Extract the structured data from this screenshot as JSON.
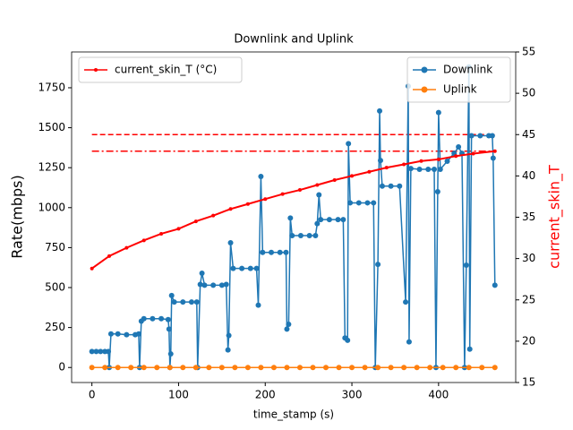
{
  "chart_data": {
    "type": "line",
    "title": "Downlink and Uplink",
    "x_label": "time_stamp (s)",
    "y_label": "Rate(mbps)",
    "y2_label": "current_skin_T",
    "xlim": [
      -23.4,
      489
    ],
    "xticks": [
      0,
      100,
      200,
      300,
      400
    ],
    "ylim": [
      -94,
      1974
    ],
    "yticks": [
      0,
      250,
      500,
      750,
      1000,
      1250,
      1500,
      1750
    ],
    "y2lim": [
      15,
      55
    ],
    "y2ticks": [
      15,
      20,
      25,
      30,
      35,
      40,
      45,
      50,
      55
    ],
    "series": [
      {
        "name": "Downlink",
        "color": "#1f77b4",
        "marker": "circle",
        "x": [
          0,
          5,
          10,
          15,
          19,
          20,
          22,
          30,
          40,
          50,
          54,
          55,
          57,
          60,
          70,
          80,
          88,
          89,
          90,
          91,
          92,
          95,
          105,
          115,
          121,
          122,
          125,
          127,
          130,
          140,
          150,
          155,
          157,
          158,
          160,
          163,
          173,
          183,
          190,
          192,
          195,
          197,
          207,
          217,
          224,
          225,
          227,
          229,
          231,
          241,
          251,
          258,
          260,
          262,
          264,
          274,
          284,
          290,
          292,
          295,
          296,
          298,
          308,
          318,
          325,
          327,
          330,
          332,
          333,
          335,
          345,
          355,
          362,
          365,
          366,
          368,
          378,
          388,
          395,
          397,
          399,
          400,
          402,
          410,
          418,
          423,
          427,
          430,
          432,
          435,
          436,
          438,
          448,
          458,
          462,
          463,
          465
        ],
        "values": [
          100,
          100,
          100,
          100,
          100,
          0,
          210,
          210,
          205,
          205,
          210,
          0,
          290,
          305,
          305,
          305,
          300,
          240,
          0,
          85,
          450,
          410,
          410,
          410,
          410,
          0,
          520,
          590,
          515,
          515,
          515,
          520,
          110,
          200,
          780,
          620,
          620,
          620,
          620,
          390,
          1195,
          720,
          720,
          720,
          720,
          240,
          270,
          935,
          825,
          825,
          825,
          825,
          900,
          1080,
          925,
          925,
          925,
          925,
          185,
          170,
          1400,
          1030,
          1030,
          1030,
          1030,
          0,
          645,
          1605,
          1295,
          1135,
          1135,
          1135,
          410,
          1760,
          160,
          1245,
          1240,
          1240,
          1240,
          0,
          1100,
          1595,
          1240,
          1290,
          1340,
          1380,
          1340,
          0,
          640,
          1880,
          115,
          1450,
          1450,
          1450,
          1450,
          1310,
          515
        ]
      },
      {
        "name": "Uplink",
        "color": "#ff7f0e",
        "marker": "circle",
        "x": [
          0,
          15,
          30,
          45,
          60,
          75,
          90,
          105,
          120,
          135,
          150,
          165,
          180,
          195,
          210,
          225,
          240,
          255,
          270,
          285,
          300,
          315,
          330,
          345,
          360,
          375,
          390,
          405,
          420,
          435,
          450,
          465
        ],
        "values": [
          0,
          0,
          0,
          0,
          0,
          0,
          0,
          0,
          0,
          0,
          0,
          0,
          0,
          0,
          0,
          0,
          0,
          0,
          0,
          0,
          0,
          0,
          0,
          0,
          0,
          0,
          0,
          0,
          0,
          0,
          0,
          0
        ]
      },
      {
        "name": "current_skin_T (°C)",
        "color": "#ff0000",
        "marker": "star",
        "axis": "y2",
        "x": [
          0,
          20,
          40,
          60,
          80,
          100,
          120,
          140,
          160,
          180,
          200,
          220,
          240,
          260,
          280,
          300,
          320,
          340,
          360,
          380,
          400,
          420,
          440,
          465
        ],
        "values": [
          28.8,
          30.3,
          31.3,
          32.2,
          33.0,
          33.6,
          34.5,
          35.2,
          36.0,
          36.6,
          37.2,
          37.8,
          38.3,
          38.9,
          39.5,
          40.0,
          40.5,
          41.0,
          41.4,
          41.8,
          42.0,
          42.4,
          42.7,
          43.0
        ]
      }
    ],
    "reference_lines": [
      {
        "value": 45,
        "style": "dashed",
        "color": "#ff0000",
        "axis": "y2",
        "x": [
          0,
          465
        ]
      },
      {
        "value": 43,
        "style": "dashdot",
        "color": "#ff0000",
        "axis": "y2",
        "x": [
          0,
          465
        ]
      }
    ]
  }
}
